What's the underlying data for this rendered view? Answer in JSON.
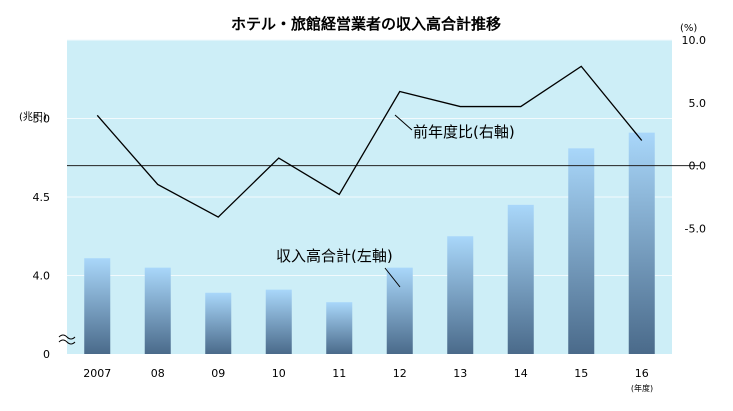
{
  "chart_data": {
    "type": "bar",
    "title": "ホテル・旅館経営業者の収入高合計推移",
    "categories": [
      "2007",
      "08",
      "09",
      "10",
      "11",
      "12",
      "13",
      "14",
      "15",
      "16"
    ],
    "x_unit": "(年度)",
    "left_axis": {
      "unit": "(兆円)",
      "ticks": [
        "5.0",
        "4.5",
        "4.0",
        "0"
      ],
      "broken": true,
      "range": [
        3.5,
        5.5
      ]
    },
    "right_axis": {
      "unit": "(%)",
      "ticks": [
        "10.0",
        "5.0",
        "0.0",
        "-5.0"
      ],
      "range": [
        -15,
        10
      ]
    },
    "series": [
      {
        "name": "収入高合計(左軸)",
        "type": "bar",
        "axis": "left",
        "values": [
          4.11,
          4.05,
          3.89,
          3.91,
          3.83,
          4.05,
          4.25,
          4.45,
          4.81,
          4.91
        ]
      },
      {
        "name": "前年度比(右軸)",
        "type": "line",
        "axis": "right",
        "values": [
          4.0,
          -1.5,
          -4.1,
          0.6,
          -2.3,
          5.9,
          4.7,
          4.7,
          7.9,
          2.0
        ]
      }
    ],
    "grid": true,
    "colors": {
      "plot_background": "#cdeef7",
      "bar_top": "#a9d7fa",
      "bar_bottom": "#4a6a8a",
      "line": "#000000",
      "gridline": "#f2fafd"
    }
  }
}
